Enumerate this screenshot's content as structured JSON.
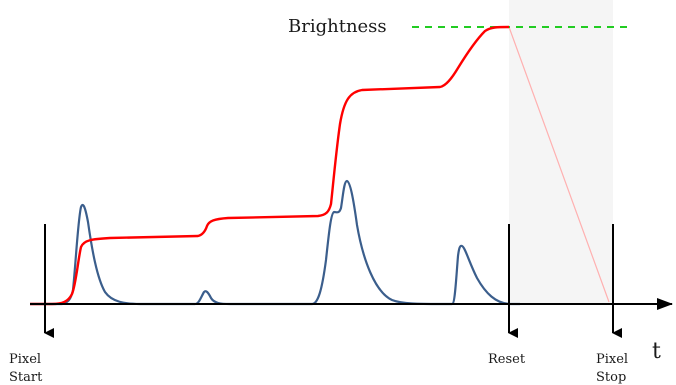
{
  "diagram": {
    "brightness_label": "Brightness",
    "time_axis_label": "t",
    "markers": {
      "pixel_start": [
        "Pixel",
        "Start"
      ],
      "reset": [
        "Reset"
      ],
      "pixel_stop": [
        "Pixel",
        "Stop"
      ]
    },
    "colors": {
      "accumulated_brightness": "#ff0000",
      "photon_signal": "#3b5e8c",
      "brightness_threshold": "#22cc22",
      "axis": "#000000",
      "stop_window_shading": "#f5f5f5",
      "discharge_line": "#ffb0b0"
    }
  }
}
